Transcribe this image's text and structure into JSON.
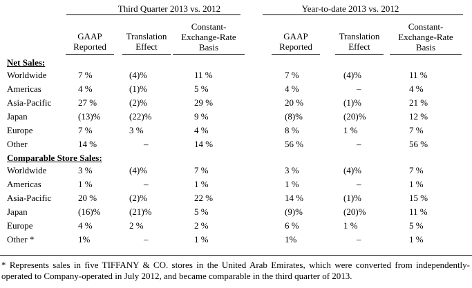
{
  "groups": {
    "q3": "Third Quarter 2013 vs. 2012",
    "ytd": "Year-to-date 2013 vs. 2012"
  },
  "columns": [
    {
      "lines": [
        "GAAP",
        "Reported"
      ]
    },
    {
      "lines": [
        "Translation",
        "Effect"
      ]
    },
    {
      "lines": [
        "Constant-",
        "Exchange-Rate",
        "Basis"
      ]
    },
    {
      "lines": [
        "GAAP",
        "Reported"
      ]
    },
    {
      "lines": [
        "Translation",
        "Effect"
      ]
    },
    {
      "lines": [
        "Constant-",
        "Exchange-Rate",
        "Basis"
      ]
    }
  ],
  "sections": [
    {
      "label": "Net Sales:",
      "rows": [
        {
          "label": "Worldwide",
          "cells": [
            "7 %",
            "(4)%",
            "11 %",
            "7 %",
            "(4)%",
            "11 %"
          ]
        },
        {
          "label": "Americas",
          "cells": [
            "4 %",
            "(1)%",
            "5 %",
            "4 %",
            "–",
            "4 %"
          ]
        },
        {
          "label": "Asia-Pacific",
          "cells": [
            "27 %",
            "(2)%",
            "29 %",
            "20 %",
            "(1)%",
            "21 %"
          ]
        },
        {
          "label": "Japan",
          "cells": [
            "(13)%",
            "(22)%",
            "9 %",
            "(8)%",
            "(20)%",
            "12 %"
          ]
        },
        {
          "label": "Europe",
          "cells": [
            "7 %",
            "3 %",
            "4 %",
            "8 %",
            "1 %",
            "7 %"
          ]
        },
        {
          "label": "Other",
          "cells": [
            "14 %",
            "–",
            "14 %",
            "56 %",
            "–",
            "56 %"
          ]
        }
      ]
    },
    {
      "label": "Comparable Store Sales:",
      "rows": [
        {
          "label": "Worldwide",
          "cells": [
            "3 %",
            "(4)%",
            "7 %",
            "3 %",
            "(4)%",
            "7 %"
          ]
        },
        {
          "label": "Americas",
          "cells": [
            "1 %",
            "–",
            "1 %",
            "1 %",
            "–",
            "1 %"
          ]
        },
        {
          "label": "Asia-Pacific",
          "cells": [
            "20 %",
            "(2)%",
            "22 %",
            "14 %",
            "(1)%",
            "15 %"
          ]
        },
        {
          "label": "Japan",
          "cells": [
            "(16)%",
            "(21)%",
            "5 %",
            "(9)%",
            "(20)%",
            "11 %"
          ]
        },
        {
          "label": "Europe",
          "cells": [
            "4 %",
            "2 %",
            "2 %",
            "6 %",
            "1 %",
            "5 %"
          ]
        },
        {
          "label": "Other *",
          "cells": [
            "1%",
            "–",
            "1 %",
            "1%",
            "–",
            "1 %"
          ]
        }
      ]
    }
  ],
  "footnote": "* Represents sales in five TIFFANY & CO. stores in the United Arab Emirates, which were converted from independently-operated to Company-operated in July 2012, and became comparable in the third quarter of 2013."
}
